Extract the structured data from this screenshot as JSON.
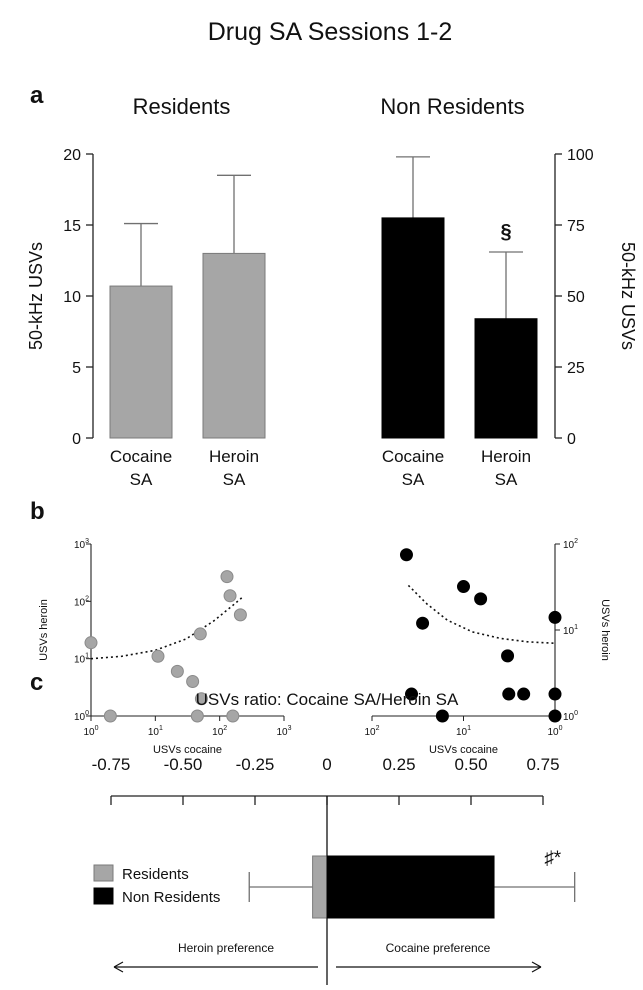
{
  "figure": {
    "title": "Drug SA Sessions 1-2",
    "panel_labels": [
      "a",
      "b",
      "c"
    ]
  },
  "colors": {
    "residents": "#a6a6a6",
    "non_residents": "#000000",
    "residents_edge": "#7a7a7a",
    "axis": "#222222",
    "error_bar": "#707070"
  },
  "chart_data": [
    {
      "id": "a-residents",
      "type": "bar",
      "title": "Residents",
      "ylabel": "50-kHz USVs",
      "categories": [
        "Cocaine\nSA",
        "Heroin\nSA"
      ],
      "values": [
        10.7,
        13.0
      ],
      "errors": [
        4.4,
        5.5
      ],
      "ylim": [
        0,
        20
      ],
      "yticks": [
        0,
        5,
        10,
        15,
        20
      ],
      "color": "residents",
      "axis_side": "left",
      "annotations": []
    },
    {
      "id": "a-non-residents",
      "type": "bar",
      "title": "Non Residents",
      "ylabel": "50-kHz USVs",
      "categories": [
        "Cocaine\nSA",
        "Heroin\nSA"
      ],
      "values": [
        77.5,
        42.0
      ],
      "errors": [
        21.5,
        23.5
      ],
      "ylim": [
        0,
        100
      ],
      "yticks": [
        0,
        25,
        50,
        75,
        100
      ],
      "color": "non_residents",
      "axis_side": "right",
      "annotations": [
        {
          "category": 1,
          "text": "§"
        }
      ]
    },
    {
      "id": "b-residents",
      "type": "scatter",
      "xlabel": "USVs cocaine",
      "ylabel": "USVs heroin",
      "x_scale": "log",
      "y_scale": "log",
      "xlim": [
        1,
        1000
      ],
      "ylim": [
        1,
        1000
      ],
      "xticks": [
        {
          "base": "10",
          "exp": "0"
        },
        {
          "base": "10",
          "exp": "1"
        },
        {
          "base": "10",
          "exp": "2"
        },
        {
          "base": "10",
          "exp": "3"
        }
      ],
      "yticks": [
        {
          "base": "10",
          "exp": "0"
        },
        {
          "base": "10",
          "exp": "1"
        },
        {
          "base": "10",
          "exp": "2"
        },
        {
          "base": "10",
          "exp": "3"
        }
      ],
      "x_reversed": false,
      "axis_side": "left",
      "color": "residents",
      "points": [
        [
          1,
          19
        ],
        [
          2,
          1
        ],
        [
          11,
          11
        ],
        [
          22,
          6
        ],
        [
          38,
          4
        ],
        [
          45,
          1
        ],
        [
          50,
          27
        ],
        [
          52,
          2
        ],
        [
          130,
          270
        ],
        [
          145,
          125
        ],
        [
          160,
          1
        ],
        [
          210,
          58
        ]
      ],
      "trend": [
        [
          1,
          10
        ],
        [
          3,
          11
        ],
        [
          10,
          14
        ],
        [
          30,
          22
        ],
        [
          80,
          45
        ],
        [
          150,
          80
        ],
        [
          220,
          115
        ]
      ]
    },
    {
      "id": "b-non-residents",
      "type": "scatter",
      "xlabel": "USVs cocaine",
      "ylabel": "USVs heroin",
      "x_scale": "log",
      "y_scale": "log",
      "xlim": [
        1,
        100
      ],
      "ylim": [
        1,
        100
      ],
      "xticks": [
        {
          "base": "10",
          "exp": "2"
        },
        {
          "base": "10",
          "exp": "1"
        },
        {
          "base": "10",
          "exp": "0"
        }
      ],
      "yticks": [
        {
          "base": "10",
          "exp": "0"
        },
        {
          "base": "10",
          "exp": "1"
        },
        {
          "base": "10",
          "exp": "2"
        }
      ],
      "x_reversed": true,
      "axis_side": "right",
      "color": "non_residents",
      "points": [
        [
          42,
          75
        ],
        [
          37,
          1.8
        ],
        [
          28,
          12
        ],
        [
          17,
          1
        ],
        [
          10,
          32
        ],
        [
          6.5,
          23
        ],
        [
          3.3,
          5
        ],
        [
          3.2,
          1.8
        ],
        [
          2.2,
          1.8
        ],
        [
          1,
          14
        ],
        [
          1,
          1.8
        ],
        [
          1,
          1
        ]
      ],
      "trend": [
        [
          40,
          33
        ],
        [
          25,
          20
        ],
        [
          15,
          13
        ],
        [
          8,
          9.5
        ],
        [
          4,
          8
        ],
        [
          2,
          7.3
        ],
        [
          1,
          7
        ]
      ]
    },
    {
      "id": "c-ratio",
      "type": "bar",
      "orientation": "horizontal",
      "title": "USVs ratio: Cocaine SA/Heroin SA",
      "xlim": [
        -0.75,
        0.75
      ],
      "xticks": [
        "-0.75",
        "-0.50",
        "-0.25",
        "0",
        "0.25",
        "0.50",
        "0.75"
      ],
      "series": [
        {
          "name": "Residents",
          "value": -0.05,
          "error": 0.22,
          "color": "residents"
        },
        {
          "name": "Non Residents",
          "value": 0.58,
          "error": 0.28,
          "color": "non_residents"
        }
      ],
      "annotations": [
        {
          "series": 1,
          "text": "♯*"
        }
      ],
      "direction_labels": {
        "left": "Heroin preference",
        "right": "Cocaine preference"
      }
    }
  ]
}
